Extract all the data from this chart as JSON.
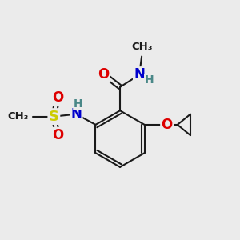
{
  "background_color": "#ebebeb",
  "bond_color": "#1a1a1a",
  "atom_colors": {
    "O": "#dd0000",
    "N": "#0000cc",
    "S": "#cccc00",
    "H": "#4a8888",
    "C": "#1a1a1a"
  }
}
